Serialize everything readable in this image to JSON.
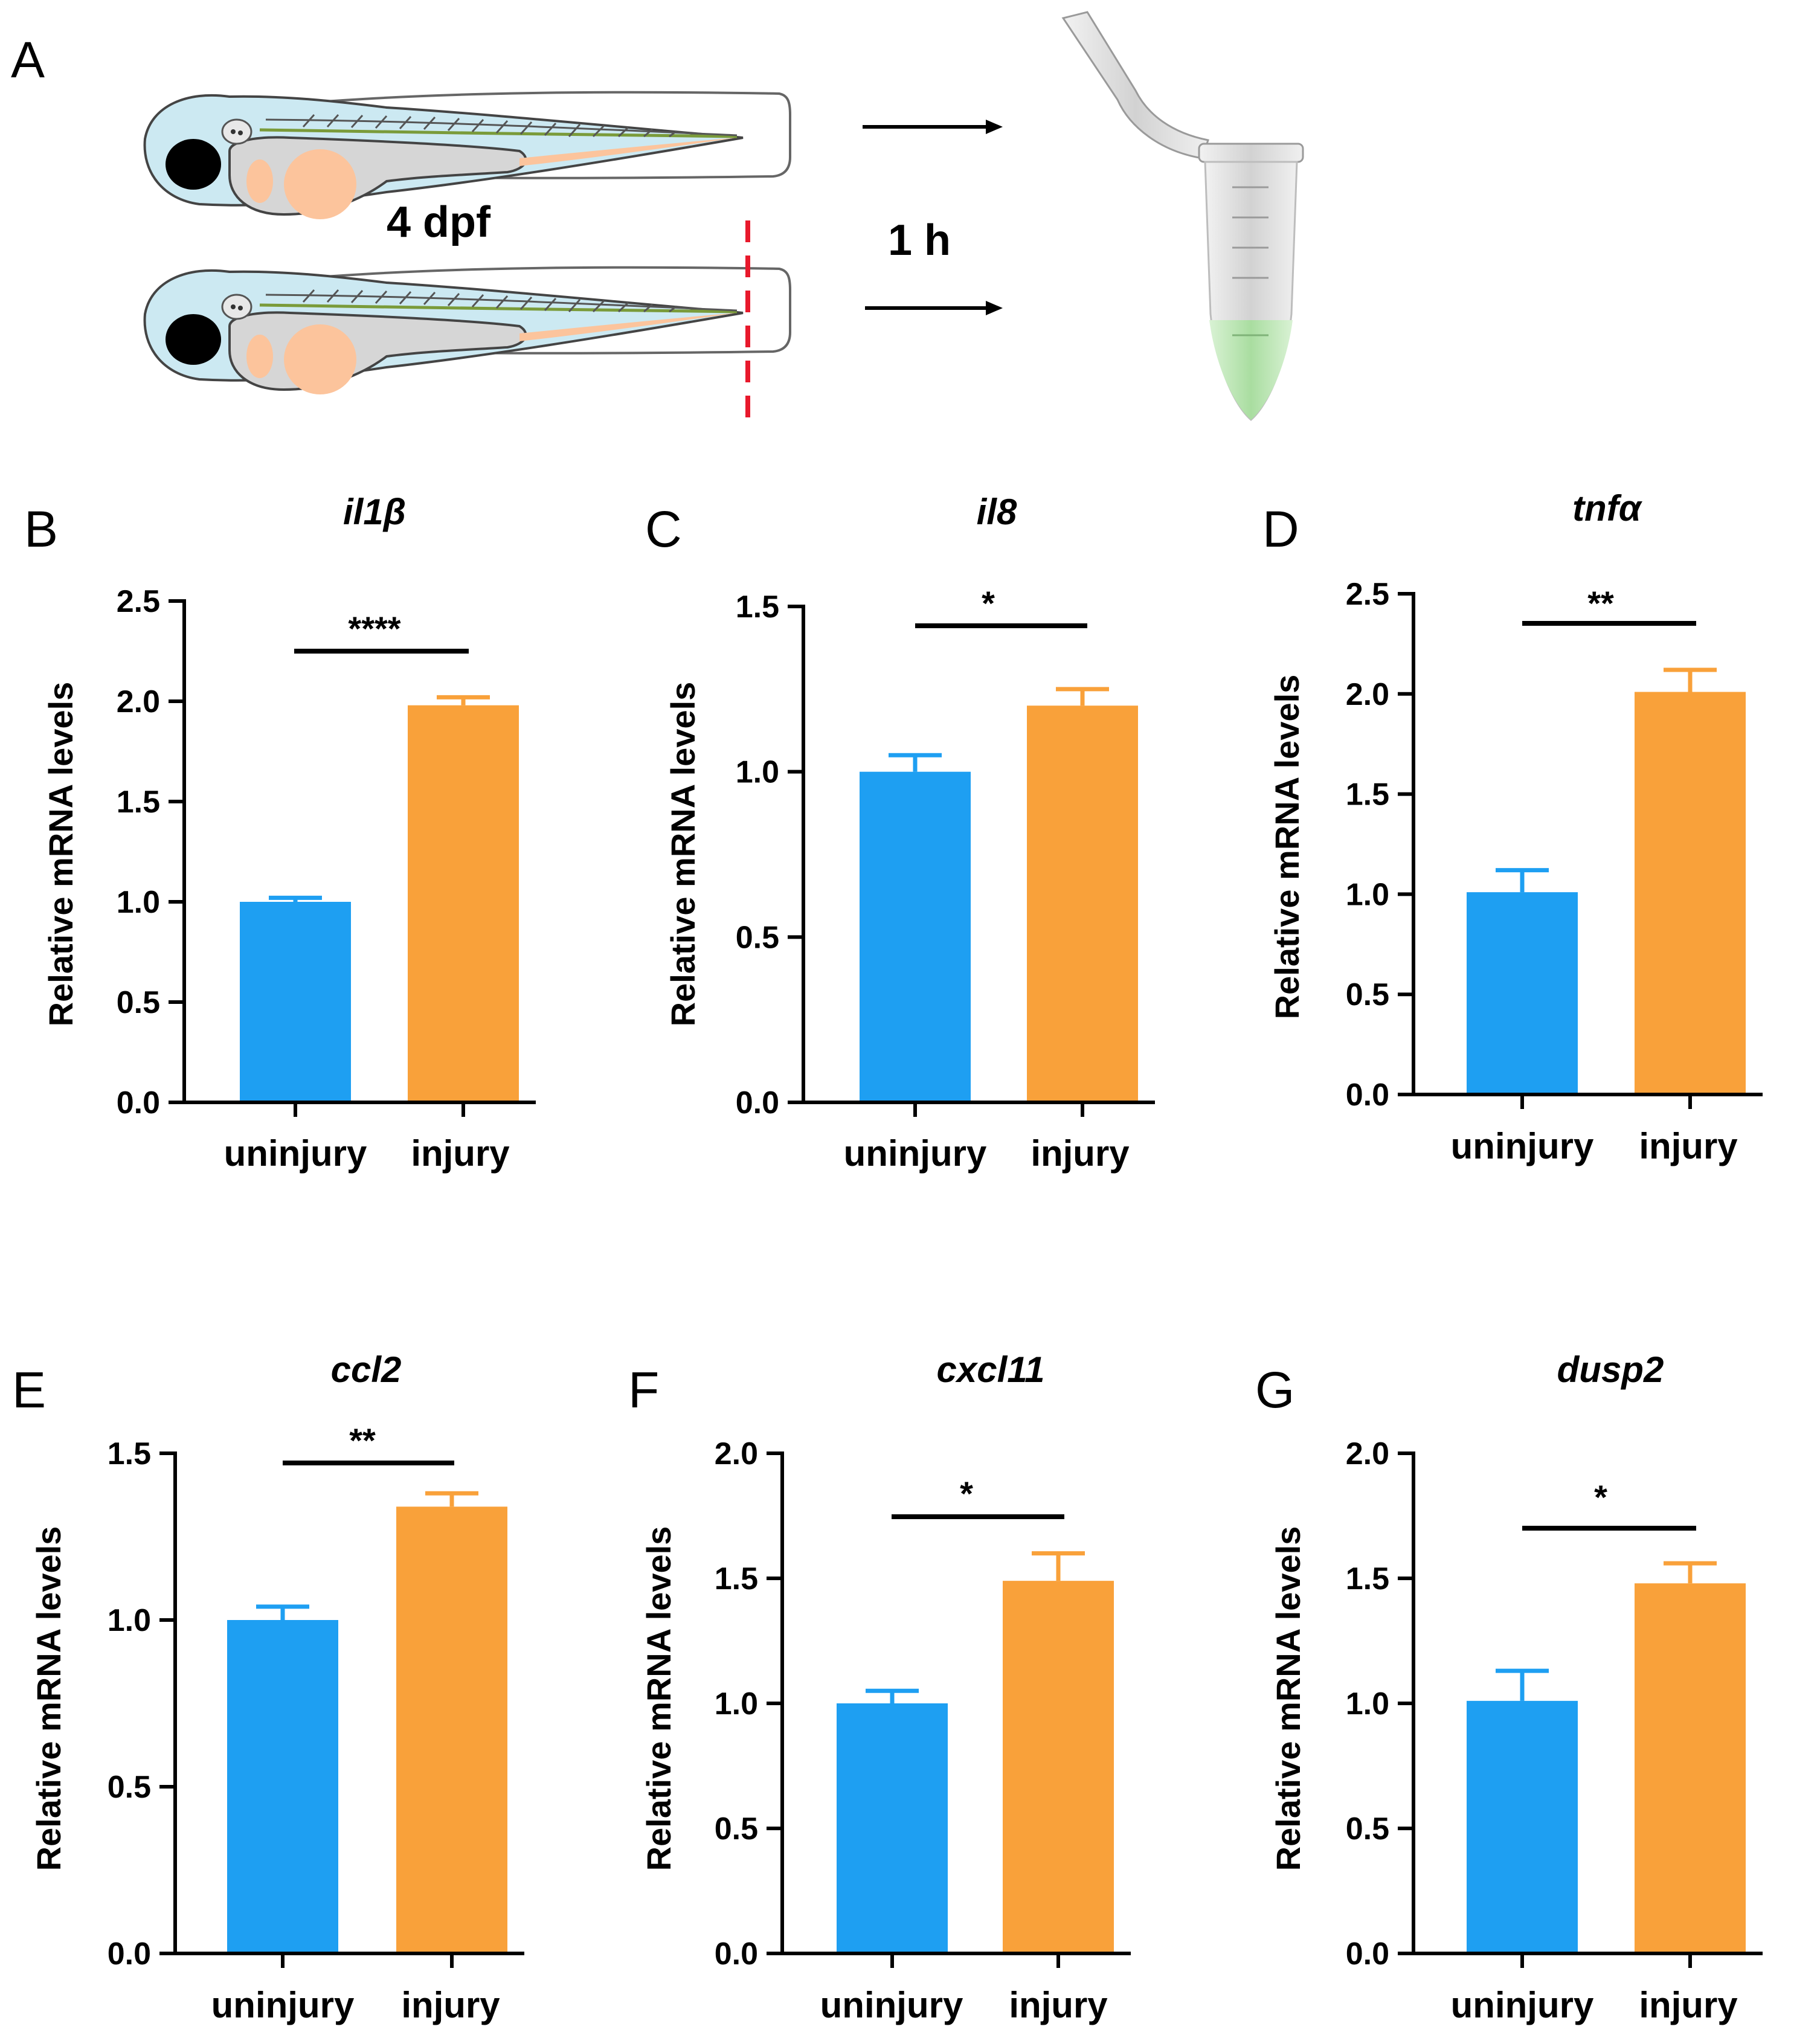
{
  "figure": {
    "panel_a": {
      "letter": "A",
      "age_label": "4 dpf",
      "time_label": "1 h"
    }
  },
  "colors": {
    "uninjury": "#1e9ff2",
    "injury": "#f9a13a",
    "larva_body": "#cce9f2",
    "yolk": "#d6d6d6",
    "orange_tissue": "#fcc49c",
    "eye": "#000000",
    "cut_line": "#e8192c",
    "tube_liquid": "#b9e6b1"
  },
  "chart_data": [
    {
      "panel": "B",
      "type": "bar",
      "title": "il1β",
      "categories": [
        "uninjury",
        "injury"
      ],
      "values": [
        1.0,
        1.98
      ],
      "errors": [
        0.02,
        0.04
      ],
      "ylabel": "Relative mRNA levels",
      "ylim": [
        0,
        2.5
      ],
      "yticks": [
        "0.0",
        "0.5",
        "1.0",
        "1.5",
        "2.0",
        "2.5"
      ],
      "significance": "****"
    },
    {
      "panel": "C",
      "type": "bar",
      "title": "il8",
      "categories": [
        "uninjury",
        "injury"
      ],
      "values": [
        1.0,
        1.2
      ],
      "errors": [
        0.05,
        0.05
      ],
      "ylabel": "Relative mRNA levels",
      "ylim": [
        0,
        1.5
      ],
      "yticks": [
        "0.0",
        "0.5",
        "1.0",
        "1.5"
      ],
      "significance": "*"
    },
    {
      "panel": "D",
      "type": "bar",
      "title": "tnfα",
      "categories": [
        "uninjury",
        "injury"
      ],
      "values": [
        1.01,
        2.01
      ],
      "errors": [
        0.11,
        0.11
      ],
      "ylabel": "Relative mRNA levels",
      "ylim": [
        0,
        2.5
      ],
      "yticks": [
        "0.0",
        "0.5",
        "1.0",
        "1.5",
        "2.0",
        "2.5"
      ],
      "significance": "**"
    },
    {
      "panel": "E",
      "type": "bar",
      "title": "ccl2",
      "categories": [
        "uninjury",
        "injury"
      ],
      "values": [
        1.0,
        1.34
      ],
      "errors": [
        0.04,
        0.04
      ],
      "ylabel": "Relative mRNA levels",
      "ylim": [
        0,
        1.5
      ],
      "yticks": [
        "0.0",
        "0.5",
        "1.0",
        "1.5"
      ],
      "significance": "**"
    },
    {
      "panel": "F",
      "type": "bar",
      "title": "cxcl11",
      "categories": [
        "uninjury",
        "injury"
      ],
      "values": [
        1.0,
        1.49
      ],
      "errors": [
        0.05,
        0.11
      ],
      "ylabel": "Relative mRNA levels",
      "ylim": [
        0,
        2.0
      ],
      "yticks": [
        "0.0",
        "0.5",
        "1.0",
        "1.5",
        "2.0"
      ],
      "significance": "*"
    },
    {
      "panel": "G",
      "type": "bar",
      "title": "dusp2",
      "categories": [
        "uninjury",
        "injury"
      ],
      "values": [
        1.01,
        1.48
      ],
      "errors": [
        0.12,
        0.08
      ],
      "ylabel": "Relative mRNA levels",
      "ylim": [
        0,
        2.0
      ],
      "yticks": [
        "0.0",
        "0.5",
        "1.0",
        "1.5",
        "2.0"
      ],
      "significance": "*"
    }
  ]
}
